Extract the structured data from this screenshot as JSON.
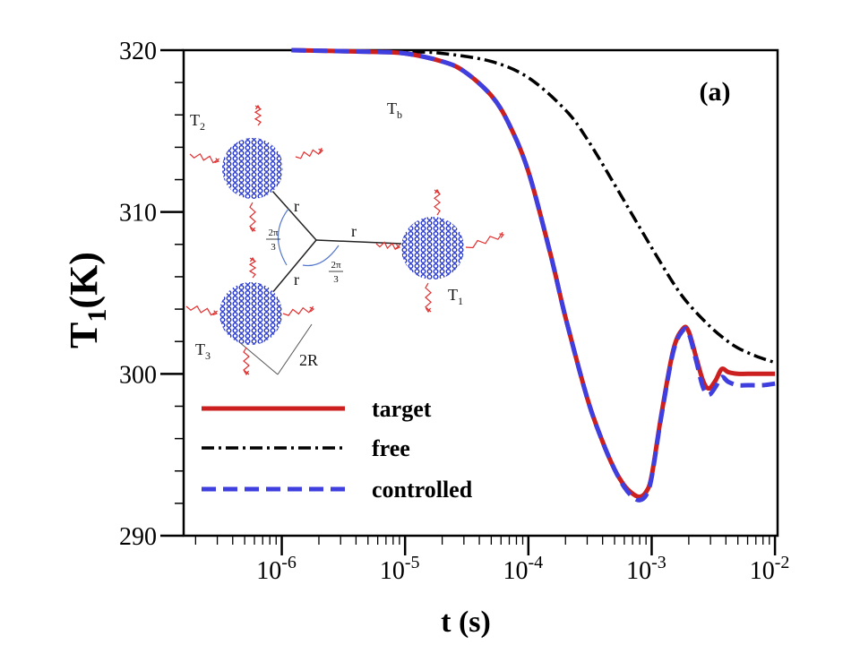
{
  "chart_data": {
    "type": "line",
    "panel_label": "(a)",
    "xlabel": "t (s)",
    "ylabel_main": "T",
    "ylabel_sub": "1",
    "ylabel_tail": "(K)",
    "x_scale": "log",
    "xlim": [
      1.6e-07,
      0.0105
    ],
    "ylim": [
      290,
      320
    ],
    "x_ticks": [
      {
        "value": 1e-06,
        "base": "10",
        "exp": "-6"
      },
      {
        "value": 1e-05,
        "base": "10",
        "exp": "-5"
      },
      {
        "value": 0.0001,
        "base": "10",
        "exp": "-4"
      },
      {
        "value": 0.001,
        "base": "10",
        "exp": "-3"
      },
      {
        "value": 0.01,
        "base": "10",
        "exp": "-2"
      }
    ],
    "y_ticks": [
      {
        "value": 320,
        "label": "320"
      },
      {
        "value": 310,
        "label": "310"
      },
      {
        "value": 300,
        "label": "300"
      },
      {
        "value": 290,
        "label": "290"
      }
    ],
    "legend_position": "bottom-left",
    "series": [
      {
        "name": "target",
        "color": "#cc1f1f",
        "style": "solid",
        "x": [
          1.2e-06,
          5e-06,
          1e-05,
          2e-05,
          3e-05,
          5e-05,
          7e-05,
          0.0001,
          0.00015,
          0.0002,
          0.0003,
          0.0004,
          0.0005,
          0.0006,
          0.0007,
          0.0008,
          0.0009,
          0.001,
          0.0012,
          0.0015,
          0.0018,
          0.002,
          0.0023,
          0.0026,
          0.0029,
          0.0033,
          0.0037,
          0.0042,
          0.005,
          0.006,
          0.008,
          0.01
        ],
        "y": [
          320,
          319.9,
          319.8,
          319.3,
          318.7,
          317.2,
          315.4,
          312.5,
          307.5,
          303.5,
          298.5,
          295.8,
          294.1,
          293.1,
          292.6,
          292.4,
          292.7,
          293.7,
          297.5,
          301.5,
          302.8,
          302.6,
          301.0,
          299.6,
          299.1,
          299.6,
          300.3,
          300.1,
          300.0,
          300.0,
          300.0,
          300.0
        ]
      },
      {
        "name": "free",
        "color": "#000000",
        "style": "dashdot",
        "x": [
          1.2e-06,
          1e-05,
          2e-05,
          5e-05,
          0.0001,
          0.0002,
          0.0003,
          0.0005,
          0.0007,
          0.001,
          0.0015,
          0.002,
          0.003,
          0.004,
          0.005,
          0.007,
          0.01
        ],
        "y": [
          320,
          319.9,
          319.8,
          319.3,
          318.3,
          316.3,
          314.5,
          311.7,
          309.8,
          307.8,
          305.6,
          304.3,
          302.9,
          302.1,
          301.6,
          301.1,
          300.7
        ]
      },
      {
        "name": "controlled",
        "color": "#3f3fe0",
        "style": "dashed",
        "x": [
          1.2e-06,
          5e-06,
          1e-05,
          2e-05,
          3e-05,
          5e-05,
          7e-05,
          0.0001,
          0.00015,
          0.0002,
          0.0003,
          0.0004,
          0.0005,
          0.0006,
          0.0007,
          0.0008,
          0.0009,
          0.001,
          0.0012,
          0.0015,
          0.0018,
          0.002,
          0.0023,
          0.0026,
          0.0029,
          0.0033,
          0.0037,
          0.0042,
          0.005,
          0.006,
          0.008,
          0.01
        ],
        "y": [
          320,
          319.9,
          319.8,
          319.3,
          318.7,
          317.2,
          315.4,
          312.5,
          307.5,
          303.5,
          298.5,
          295.8,
          294.1,
          293.0,
          292.4,
          292.2,
          292.5,
          293.6,
          297.4,
          301.4,
          302.7,
          302.5,
          300.8,
          299.2,
          298.7,
          299.2,
          299.8,
          299.5,
          299.3,
          299.3,
          299.3,
          299.4
        ]
      }
    ],
    "inset": {
      "labels": {
        "T2": {
          "main": "T",
          "sub": "2"
        },
        "T3": {
          "main": "T",
          "sub": "3"
        },
        "T1": {
          "main": "T",
          "sub": "1"
        },
        "Tb": {
          "main": "T",
          "sub": "b"
        },
        "r": "r",
        "two_r": "2R",
        "angle_num": "2π",
        "angle_den": "3"
      },
      "particle_color": "#2233cc",
      "wave_color": "#e03030"
    }
  }
}
